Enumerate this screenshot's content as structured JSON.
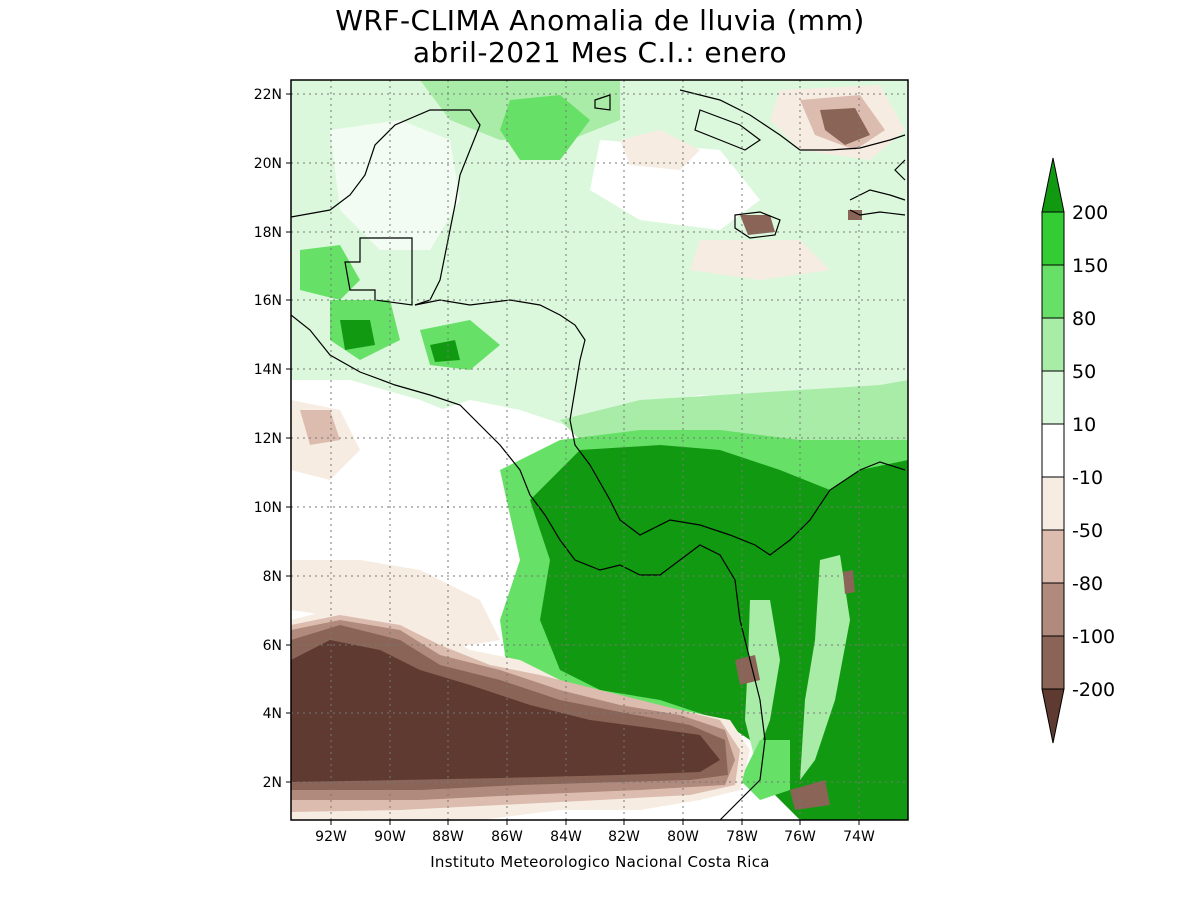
{
  "title_line1": "WRF-CLIMA Anomalia de lluvia (mm)",
  "title_line2": "abril-2021 Mes C.I.: enero",
  "credit": "Instituto Meteorologico Nacional Costa Rica",
  "lat_labels": [
    "22N",
    "20N",
    "18N",
    "16N",
    "14N",
    "12N",
    "10N",
    "8N",
    "6N",
    "4N",
    "2N"
  ],
  "lon_labels": [
    "92W",
    "90W",
    "88W",
    "86W",
    "84W",
    "82W",
    "80W",
    "78W",
    "76W",
    "74W"
  ],
  "legend": {
    "labels": [
      "200",
      "150",
      "80",
      "50",
      "10",
      "-10",
      "-50",
      "-80",
      "-100",
      "-200"
    ],
    "colors": {
      "above_200": "#119a11",
      "150_200": "#33cc33",
      "80_150": "#66e066",
      "50_80": "#a8eca8",
      "10_50": "#dcf8dc",
      "neutral": "#ffffff",
      "m10_m50": "#f6ece2",
      "m50_m80": "#dcbcae",
      "m80_m100": "#b08a7c",
      "m100_m200": "#8a6456",
      "below_m200": "#5e3a30"
    }
  },
  "features": {
    "coastline": "black outline of Central America and Caribbean islands",
    "gridlines": "dotted"
  }
}
